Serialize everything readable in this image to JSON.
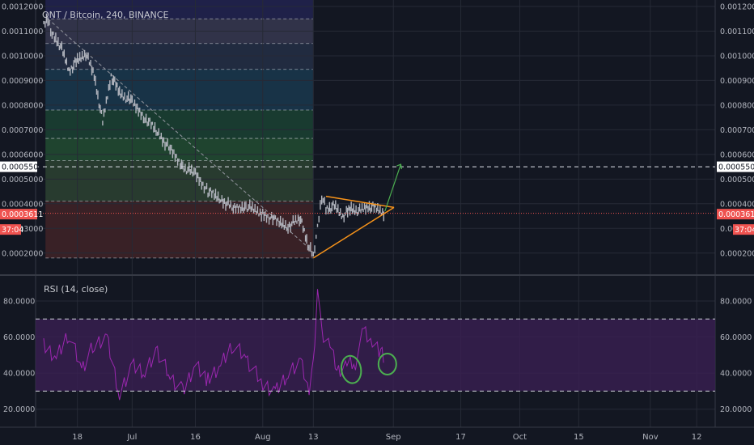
{
  "header": {
    "title": "ONT / Bitcoin, 240, BINANCE"
  },
  "rsi_header": {
    "title": "RSI (14, close)"
  },
  "price_axis": {
    "ticks": [
      "0.0012000",
      "0.0011000",
      "0.0010000",
      "0.0009000",
      "0.0008000",
      "0.0007000",
      "0.0006000",
      "0.0005000",
      "0.0004000",
      "0.0003000",
      "0.0002000"
    ],
    "ticks_left": [
      "0.0012000",
      "0.0011000",
      "0.0010000",
      "0.0009000",
      "0.0008000",
      "0.0007000",
      "0.0006000",
      "0.0005000",
      "0.0004000",
      "0.0003000",
      "0.0002000"
    ]
  },
  "rsi_axis": {
    "ticks": [
      "80.0000",
      "60.0000",
      "40.0000",
      "20.0000"
    ]
  },
  "time_axis": {
    "labels": [
      "18",
      "Jul",
      "16",
      "Aug",
      "13",
      "Sep",
      "17",
      "Oct",
      "15",
      "Nov",
      "12"
    ]
  },
  "tags": {
    "target_price": "0.0005500",
    "current_price": "0.0003611",
    "countdown": "37:04"
  },
  "colors": {
    "background": "#131722",
    "grid": "#262a36",
    "text": "#b2b5be",
    "candle_up": "#b2b5be",
    "candle_down": "#b2b5be",
    "rsi_line": "#9c27b0",
    "rsi_band": "#3a1f52",
    "trendline": "#f7931a",
    "arrow": "#4caf50",
    "circle": "#4caf50",
    "current_price_line": "#ef5350",
    "fib_colors": [
      "#4a4a6a",
      "#2e3c5a",
      "#1e4a66",
      "#1f5a3c",
      "#2a6a3a",
      "#3a5a3a",
      "#5a2a2a"
    ]
  },
  "chart_data": [
    {
      "type": "candlestick",
      "title": "ONT / Bitcoin, 240, BINANCE",
      "xlabel": "",
      "ylabel": "",
      "x": [
        "Jun 10",
        "Jun 11",
        "Jun 12",
        "Jun 14",
        "Jun 16",
        "Jun 18",
        "Jun 20",
        "Jun 22",
        "Jun 24",
        "Jun 26",
        "Jun 28",
        "Jul 1",
        "Jul 4",
        "Jul 7",
        "Jul 10",
        "Jul 13",
        "Jul 16",
        "Jul 19",
        "Jul 22",
        "Jul 25",
        "Jul 28",
        "Aug 1",
        "Aug 4",
        "Aug 7",
        "Aug 10",
        "Aug 12",
        "Aug 13",
        "Aug 14",
        "Aug 15",
        "Aug 16",
        "Aug 18",
        "Aug 20",
        "Aug 22",
        "Aug 24",
        "Aug 26",
        "Aug 28",
        "Aug 30"
      ],
      "values": [
        0.00112,
        0.00115,
        0.00109,
        0.00104,
        0.00094,
        0.00098,
        0.00101,
        0.00092,
        0.00073,
        0.00092,
        0.00085,
        0.00081,
        0.00075,
        0.00069,
        0.00062,
        0.00055,
        0.00052,
        0.00045,
        0.00042,
        0.00038,
        0.00039,
        0.00036,
        0.00033,
        0.00031,
        0.00034,
        0.00022,
        0.00019,
        0.0003,
        0.00043,
        0.00038,
        0.00039,
        0.00035,
        0.00038,
        0.00037,
        0.00039,
        0.00038,
        0.000361
      ],
      "ylim": [
        0.00015,
        0.0012
      ],
      "annotations": {
        "fib_levels": [
          0.00115,
          0.00105,
          0.000945,
          0.00078,
          0.000665,
          0.000575,
          0.00041,
          0.00018
        ],
        "horizontal_target": 0.00055,
        "current_price": 0.0003611,
        "triangle_upper": [
          [
            "Aug 16",
            0.00043
          ],
          [
            "Aug 31",
            0.000385
          ]
        ],
        "triangle_lower": [
          [
            "Aug 13",
            0.00018
          ],
          [
            "Aug 31",
            0.000385
          ]
        ],
        "arrow": [
          [
            "Aug 30",
            0.00037
          ],
          [
            "Sep 2",
            0.00056
          ]
        ]
      }
    },
    {
      "type": "line",
      "title": "RSI (14, close)",
      "xlabel": "",
      "ylabel": "",
      "x": [
        "Jun 10",
        "Jun 13",
        "Jun 16",
        "Jun 19",
        "Jun 22",
        "Jun 25",
        "Jun 28",
        "Jul 1",
        "Jul 4",
        "Jul 7",
        "Jul 10",
        "Jul 13",
        "Jul 16",
        "Jul 19",
        "Jul 22",
        "Jul 25",
        "Jul 28",
        "Aug 1",
        "Aug 4",
        "Aug 7",
        "Aug 10",
        "Aug 12",
        "Aug 13",
        "Aug 14",
        "Aug 15",
        "Aug 17",
        "Aug 19",
        "Aug 21",
        "Aug 23",
        "Aug 25",
        "Aug 27",
        "Aug 29",
        "Aug 30"
      ],
      "values": [
        55,
        48,
        62,
        42,
        56,
        60,
        28,
        44,
        40,
        52,
        38,
        30,
        45,
        36,
        44,
        56,
        48,
        34,
        30,
        40,
        46,
        30,
        45,
        88,
        62,
        55,
        40,
        44,
        46,
        64,
        58,
        52,
        48
      ],
      "ylim": [
        10,
        93
      ],
      "bands": {
        "upper": 70,
        "lower": 30
      }
    }
  ]
}
